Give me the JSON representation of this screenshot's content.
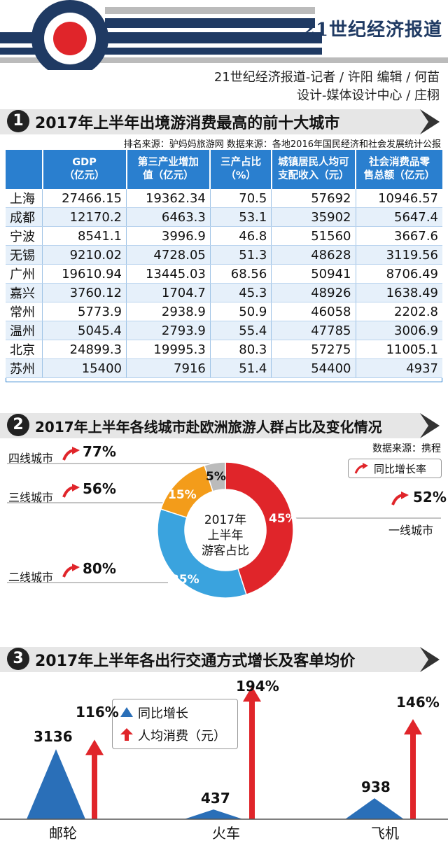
{
  "header": {
    "paper_name": "21世纪经济报道",
    "credit_line1": "21世纪经济报道-记者 / 许阳   编辑 / 何苗",
    "credit_line2": "设计-媒体设计中心 / 庄栩"
  },
  "colors": {
    "navy": "#1f3a63",
    "red": "#e0252a",
    "blue": "#2a7fcf",
    "orange": "#f39c1a",
    "sky": "#3aa3de",
    "gray": "#bbbbbb"
  },
  "section1": {
    "number": "1",
    "title": "2017年上半年出境游消费最高的前十大城市",
    "source": "排名来源：驴妈妈旅游网    数据来源：各地2016年国民经济和社会发展统计公报",
    "columns": [
      "",
      "GDP\n（亿元）",
      "第三产业增加\n值（亿元）",
      "三产占比\n（%）",
      "城镇居民人均可\n支配收入（元）",
      "社会消费品零\n售总额（亿元）"
    ],
    "rows": [
      [
        "上海",
        "27466.15",
        "19362.34",
        "70.5",
        "57692",
        "10946.57"
      ],
      [
        "成都",
        "12170.2",
        "6463.3",
        "53.1",
        "35902",
        "5647.4"
      ],
      [
        "宁波",
        "8541.1",
        "3996.9",
        "46.8",
        "51560",
        "3667.6"
      ],
      [
        "无锡",
        "9210.02",
        "4728.05",
        "51.3",
        "48628",
        "3119.56"
      ],
      [
        "广州",
        "19610.94",
        "13445.03",
        "68.56",
        "50941",
        "8706.49"
      ],
      [
        "嘉兴",
        "3760.12",
        "1704.7",
        "45.3",
        "48926",
        "1638.49"
      ],
      [
        "常州",
        "5773.9",
        "2938.9",
        "50.9",
        "46058",
        "2202.8"
      ],
      [
        "温州",
        "5045.4",
        "2793.9",
        "55.4",
        "47785",
        "3006.9"
      ],
      [
        "北京",
        "24899.3",
        "19995.3",
        "80.3",
        "57275",
        "11005.1"
      ],
      [
        "苏州",
        "15400",
        "7916",
        "51.4",
        "54400",
        "4937"
      ]
    ]
  },
  "section2": {
    "number": "2",
    "title": "2017年上半年各线城市赴欧洲旅游人群占比及变化情况",
    "source": "数据来源：携程",
    "legend": "同比增长率",
    "center_line1": "2017年",
    "center_line2": "上半年",
    "center_line3": "游客占比",
    "cities": [
      {
        "name": "四线城市",
        "share": 5,
        "share_label": "5%",
        "growth": "77%",
        "color": "#bbbbbb"
      },
      {
        "name": "三线城市",
        "share": 15,
        "share_label": "15%",
        "growth": "56%",
        "color": "#f39c1a"
      },
      {
        "name": "二线城市",
        "share": 35,
        "share_label": "35%",
        "growth": "80%",
        "color": "#3aa3de"
      },
      {
        "name": "一线城市",
        "share": 45,
        "share_label": "45%",
        "growth": "52%",
        "color": "#e0252a"
      }
    ]
  },
  "section3": {
    "number": "3",
    "title": "2017年上半年各出行交通方式增长及客单均价",
    "legend_growth": "同比增长",
    "legend_spend": "人均消费（元）",
    "modes": [
      {
        "name": "邮轮",
        "growth": "116%",
        "spend": "3136",
        "growth_value": 116,
        "spend_value": 3136
      },
      {
        "name": "火车",
        "growth": "194%",
        "spend": "437",
        "growth_value": 194,
        "spend_value": 437
      },
      {
        "name": "飞机",
        "growth": "146%",
        "spend": "938",
        "growth_value": 146,
        "spend_value": 938
      }
    ]
  }
}
